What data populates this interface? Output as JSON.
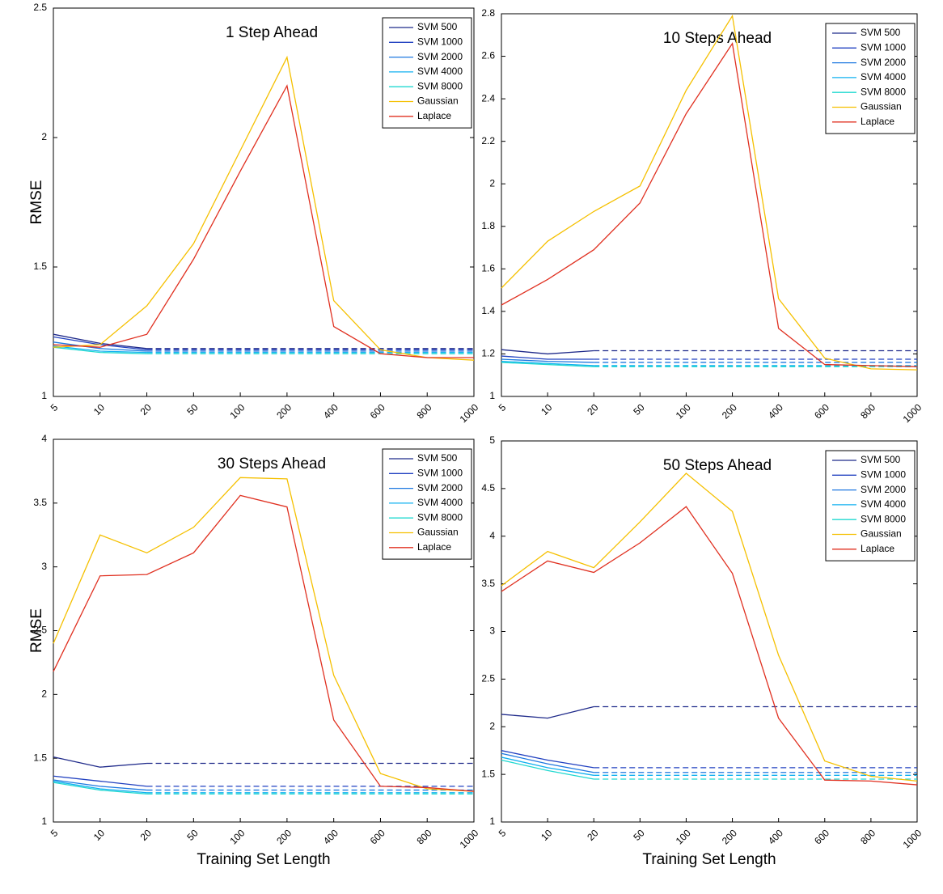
{
  "chart_data": [
    {
      "type": "line",
      "title": "1 Step Ahead",
      "y_label": "RMSE",
      "categories": [
        "5",
        "10",
        "20",
        "50",
        "100",
        "200",
        "400",
        "600",
        "800",
        "1000"
      ],
      "ylim": [
        1,
        2.5
      ],
      "yticks": [
        1,
        1.5,
        2,
        2.5
      ],
      "legend": "upper right",
      "extend_dashed": true,
      "series": [
        {
          "name": "SVM  500",
          "color": "#1f2a8a",
          "values": [
            1.24,
            1.205,
            1.185,
            null,
            null,
            null,
            null,
            null,
            null,
            null
          ]
        },
        {
          "name": "SVM  1000",
          "color": "#2040c0",
          "values": [
            1.23,
            1.2,
            1.18,
            null,
            null,
            null,
            null,
            null,
            null,
            null
          ]
        },
        {
          "name": "SVM  2000",
          "color": "#1e78e0",
          "values": [
            1.21,
            1.185,
            1.175,
            null,
            null,
            null,
            null,
            null,
            null,
            null
          ]
        },
        {
          "name": "SVM  4000",
          "color": "#10b0f0",
          "values": [
            1.195,
            1.175,
            1.17,
            null,
            null,
            null,
            null,
            null,
            null,
            null
          ]
        },
        {
          "name": "SVM  8000",
          "color": "#20d8d0",
          "values": [
            1.19,
            1.17,
            1.165,
            null,
            null,
            null,
            null,
            null,
            null,
            null
          ]
        },
        {
          "name": "Gaussian",
          "color": "#f5c000",
          "values": [
            1.19,
            1.2,
            1.35,
            1.59,
            1.95,
            2.31,
            1.37,
            1.18,
            1.15,
            1.14
          ]
        },
        {
          "name": "Laplace",
          "color": "#e03020",
          "values": [
            1.2,
            1.19,
            1.24,
            1.53,
            1.87,
            2.2,
            1.27,
            1.165,
            1.15,
            1.15
          ]
        }
      ]
    },
    {
      "type": "line",
      "title": "10 Steps Ahead",
      "categories": [
        "5",
        "10",
        "20",
        "50",
        "100",
        "200",
        "400",
        "600",
        "800",
        "1000"
      ],
      "ylim": [
        1,
        2.8
      ],
      "yticks": [
        1,
        1.2,
        1.4,
        1.6,
        1.8,
        2,
        2.2,
        2.4,
        2.6,
        2.8
      ],
      "legend": "upper right",
      "extend_dashed": true,
      "series": [
        {
          "name": "SVM  500",
          "color": "#1f2a8a",
          "values": [
            1.22,
            1.2,
            1.215,
            null,
            null,
            null,
            null,
            null,
            null,
            null
          ]
        },
        {
          "name": "SVM  1000",
          "color": "#2040c0",
          "values": [
            1.19,
            1.175,
            1.175,
            null,
            null,
            null,
            null,
            null,
            null,
            null
          ]
        },
        {
          "name": "SVM  2000",
          "color": "#1e78e0",
          "values": [
            1.175,
            1.165,
            1.16,
            null,
            null,
            null,
            null,
            null,
            null,
            null
          ]
        },
        {
          "name": "SVM  4000",
          "color": "#10b0f0",
          "values": [
            1.165,
            1.155,
            1.145,
            null,
            null,
            null,
            null,
            null,
            null,
            null
          ]
        },
        {
          "name": "SVM  8000",
          "color": "#20d8d0",
          "values": [
            1.16,
            1.15,
            1.14,
            null,
            null,
            null,
            null,
            null,
            null,
            null
          ]
        },
        {
          "name": "Gaussian",
          "color": "#f5c000",
          "values": [
            1.51,
            1.73,
            1.87,
            1.99,
            2.44,
            2.79,
            1.46,
            1.18,
            1.13,
            1.125
          ]
        },
        {
          "name": "Laplace",
          "color": "#e03020",
          "values": [
            1.43,
            1.55,
            1.69,
            1.91,
            2.33,
            2.66,
            1.32,
            1.15,
            1.145,
            1.14
          ]
        }
      ]
    },
    {
      "type": "line",
      "title": "30 Steps Ahead",
      "y_label": "RMSE",
      "x_label": "Training Set Length",
      "categories": [
        "5",
        "10",
        "20",
        "50",
        "100",
        "200",
        "400",
        "600",
        "800",
        "1000"
      ],
      "ylim": [
        1,
        4
      ],
      "yticks": [
        1,
        1.5,
        2,
        2.5,
        3,
        3.5,
        4
      ],
      "legend": "upper right",
      "extend_dashed": true,
      "series": [
        {
          "name": "SVM  500",
          "color": "#1f2a8a",
          "values": [
            1.51,
            1.43,
            1.46,
            null,
            null,
            null,
            null,
            null,
            null,
            null
          ]
        },
        {
          "name": "SVM  1000",
          "color": "#2040c0",
          "values": [
            1.36,
            1.32,
            1.28,
            null,
            null,
            null,
            null,
            null,
            null,
            null
          ]
        },
        {
          "name": "SVM  2000",
          "color": "#1e78e0",
          "values": [
            1.33,
            1.28,
            1.25,
            null,
            null,
            null,
            null,
            null,
            null,
            null
          ]
        },
        {
          "name": "SVM  4000",
          "color": "#10b0f0",
          "values": [
            1.32,
            1.26,
            1.23,
            null,
            null,
            null,
            null,
            null,
            null,
            null
          ]
        },
        {
          "name": "SVM  8000",
          "color": "#20d8d0",
          "values": [
            1.31,
            1.25,
            1.22,
            null,
            null,
            null,
            null,
            null,
            null,
            null
          ]
        },
        {
          "name": "Gaussian",
          "color": "#f5c000",
          "values": [
            2.4,
            3.25,
            3.11,
            3.31,
            3.7,
            3.69,
            2.15,
            1.38,
            1.26,
            1.24
          ]
        },
        {
          "name": "Laplace",
          "color": "#e03020",
          "values": [
            2.18,
            2.93,
            2.94,
            3.11,
            3.56,
            3.47,
            1.8,
            1.28,
            1.27,
            1.24
          ]
        }
      ]
    },
    {
      "type": "line",
      "title": "50 Steps Ahead",
      "x_label": "Training Set Length",
      "categories": [
        "5",
        "10",
        "20",
        "50",
        "100",
        "200",
        "400",
        "600",
        "800",
        "1000"
      ],
      "ylim": [
        1,
        5
      ],
      "yticks": [
        1,
        1.5,
        2,
        2.5,
        3,
        3.5,
        4,
        4.5,
        5
      ],
      "legend": "upper right",
      "extend_dashed": true,
      "series": [
        {
          "name": "SVM  500",
          "color": "#1f2a8a",
          "values": [
            2.13,
            2.09,
            2.21,
            null,
            null,
            null,
            null,
            null,
            null,
            null
          ]
        },
        {
          "name": "SVM  1000",
          "color": "#2040c0",
          "values": [
            1.75,
            1.65,
            1.57,
            null,
            null,
            null,
            null,
            null,
            null,
            null
          ]
        },
        {
          "name": "SVM  2000",
          "color": "#1e78e0",
          "values": [
            1.72,
            1.61,
            1.52,
            null,
            null,
            null,
            null,
            null,
            null,
            null
          ]
        },
        {
          "name": "SVM  4000",
          "color": "#10b0f0",
          "values": [
            1.68,
            1.57,
            1.49,
            null,
            null,
            null,
            null,
            null,
            null,
            null
          ]
        },
        {
          "name": "SVM  8000",
          "color": "#20d8d0",
          "values": [
            1.65,
            1.54,
            1.45,
            null,
            null,
            null,
            null,
            null,
            null,
            null
          ]
        },
        {
          "name": "Gaussian",
          "color": "#f5c000",
          "values": [
            3.48,
            3.84,
            3.67,
            4.15,
            4.66,
            4.26,
            2.75,
            1.64,
            1.48,
            1.43
          ]
        },
        {
          "name": "Laplace",
          "color": "#e03020",
          "values": [
            3.42,
            3.74,
            3.62,
            3.93,
            4.31,
            3.61,
            2.09,
            1.44,
            1.43,
            1.39
          ]
        }
      ]
    }
  ]
}
